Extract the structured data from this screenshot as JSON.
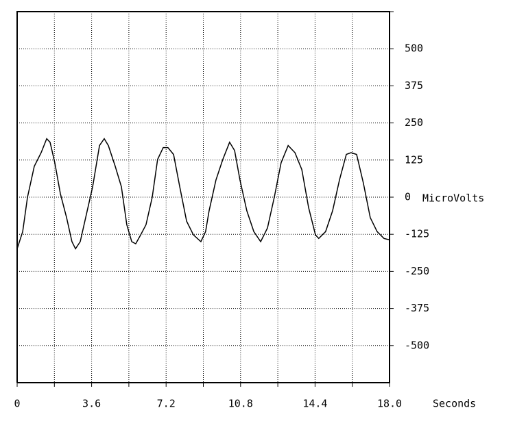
{
  "chart_data": {
    "type": "line",
    "x_label": "Seconds",
    "y_label": "MicroVolts",
    "xlim": [
      0,
      18
    ],
    "ylim": [
      -625,
      625
    ],
    "xticks": [
      0,
      3.6,
      7.2,
      10.8,
      14.4,
      {
        "value": 18,
        "label": "18.0"
      }
    ],
    "xgrid": [
      1.8,
      5.4,
      9,
      12.6,
      16.2
    ],
    "yticks": [
      500,
      375,
      250,
      125,
      0,
      -125,
      -250,
      -375,
      -500
    ],
    "grid": true,
    "series": [
      {
        "color": "#000000",
        "x": [
          0,
          0.27,
          0.5,
          0.83,
          1.16,
          1.43,
          1.59,
          1.82,
          2.09,
          2.39,
          2.65,
          2.82,
          3.05,
          3.31,
          3.65,
          3.98,
          4.21,
          4.41,
          4.74,
          5.04,
          5.3,
          5.54,
          5.73,
          5.97,
          6.23,
          6.53,
          6.79,
          7.06,
          7.29,
          7.56,
          7.86,
          8.19,
          8.52,
          8.88,
          9.11,
          9.28,
          9.61,
          9.94,
          10.27,
          10.51,
          10.77,
          11.1,
          11.44,
          11.77,
          12.1,
          12.43,
          12.76,
          13.1,
          13.43,
          13.76,
          14.09,
          14.42,
          14.58,
          14.91,
          15.25,
          15.58,
          15.91,
          16.14,
          16.41,
          16.74,
          17.07,
          17.4,
          17.73,
          18
        ],
        "values": [
          -174,
          -116,
          0,
          104,
          150,
          197,
          185,
          116,
          12,
          -69,
          -150,
          -174,
          -150,
          -69,
          35,
          174,
          197,
          174,
          104,
          35,
          -93,
          -150,
          -157,
          -127,
          -93,
          0,
          127,
          167,
          167,
          144,
          35,
          -81,
          -127,
          -150,
          -116,
          -46,
          58,
          127,
          185,
          157,
          58,
          -46,
          -116,
          -150,
          -104,
          0,
          116,
          174,
          150,
          93,
          -35,
          -127,
          -139,
          -116,
          -46,
          58,
          144,
          150,
          144,
          46,
          -69,
          -116,
          -139,
          -144
        ]
      }
    ]
  }
}
